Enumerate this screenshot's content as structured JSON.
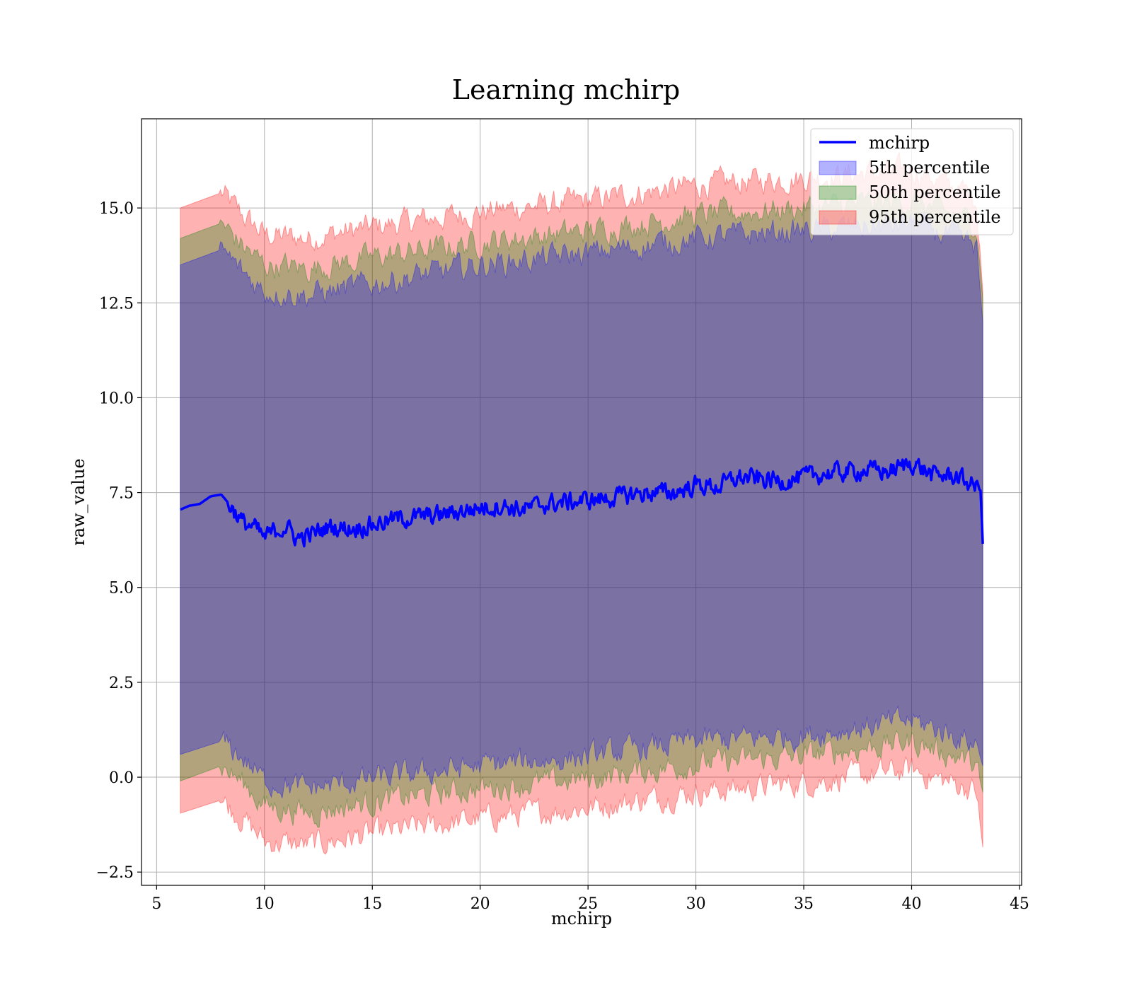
{
  "chart_data": {
    "type": "area",
    "title": "Learning mchirp",
    "xlabel": "mchirp",
    "ylabel": "raw_value",
    "xlim": [
      4.3,
      45.1
    ],
    "ylim": [
      -2.85,
      17.35
    ],
    "x_ticks": [
      5,
      10,
      15,
      20,
      25,
      30,
      35,
      40,
      45
    ],
    "x_tick_labels": [
      "5",
      "10",
      "15",
      "20",
      "25",
      "30",
      "35",
      "40",
      "45"
    ],
    "y_ticks": [
      -2.5,
      0.0,
      2.5,
      5.0,
      7.5,
      10.0,
      12.5,
      15.0
    ],
    "y_tick_labels": [
      "−2.5",
      "0.0",
      "2.5",
      "5.0",
      "7.5",
      "10.0",
      "12.5",
      "15.0"
    ],
    "grid": true,
    "legend_position": "top-right",
    "colors": {
      "line": "#0000ff",
      "band_5th": "#0000ff",
      "band_50th": "#008000",
      "band_95th": "#ff0000"
    },
    "series": [
      {
        "name": "mchirp",
        "kind": "line",
        "x": [
          6.1,
          6.5,
          7.0,
          7.5,
          8.0,
          8.5,
          9.0,
          9.5,
          10.0,
          10.5,
          11.0,
          11.5,
          12.0,
          13.0,
          14.0,
          15.0,
          16.0,
          17.0,
          18.0,
          19.0,
          20.0,
          21.0,
          22.0,
          23.0,
          24.0,
          25.0,
          26.0,
          27.0,
          28.0,
          29.0,
          30.0,
          31.0,
          32.0,
          33.0,
          34.0,
          35.0,
          36.0,
          37.0,
          38.0,
          39.0,
          40.0,
          41.0,
          42.0,
          43.0,
          43.2,
          43.3
        ],
        "values": [
          7.05,
          7.15,
          7.2,
          7.4,
          7.45,
          7.1,
          6.7,
          6.6,
          6.3,
          6.5,
          6.6,
          6.3,
          6.35,
          6.6,
          6.55,
          6.65,
          6.8,
          6.85,
          6.9,
          7.0,
          7.1,
          7.15,
          7.05,
          7.2,
          7.25,
          7.3,
          7.35,
          7.45,
          7.5,
          7.5,
          7.7,
          7.65,
          7.9,
          7.85,
          7.8,
          7.9,
          8.0,
          8.05,
          8.1,
          8.05,
          8.3,
          7.95,
          7.95,
          7.65,
          7.55,
          6.15
        ]
      },
      {
        "name": "5th percentile",
        "kind": "band",
        "x": [
          6.1,
          8.0,
          9.0,
          10.0,
          12.0,
          15.0,
          20.0,
          25.0,
          30.0,
          35.0,
          40.0,
          41.0,
          43.0,
          43.3
        ],
        "lower": [
          0.6,
          0.95,
          0.5,
          -0.1,
          -0.3,
          -0.05,
          0.3,
          0.55,
          0.95,
          1.1,
          1.5,
          1.3,
          0.9,
          0.3
        ],
        "upper": [
          13.5,
          13.9,
          13.3,
          12.8,
          12.7,
          13.0,
          13.5,
          13.8,
          14.2,
          14.4,
          14.6,
          14.4,
          14.0,
          12.0
        ]
      },
      {
        "name": "50th percentile",
        "kind": "band",
        "x": [
          6.1,
          8.0,
          9.0,
          10.0,
          12.0,
          15.0,
          20.0,
          25.0,
          30.0,
          35.0,
          40.0,
          41.0,
          43.0,
          43.3
        ],
        "lower": [
          -0.1,
          0.3,
          -0.15,
          -0.75,
          -0.95,
          -0.65,
          -0.3,
          -0.05,
          0.35,
          0.55,
          0.95,
          0.75,
          0.35,
          -0.4
        ],
        "upper": [
          14.2,
          14.6,
          14.0,
          13.5,
          13.4,
          13.7,
          14.1,
          14.4,
          14.8,
          15.0,
          15.2,
          15.0,
          14.6,
          12.6
        ]
      },
      {
        "name": "95th percentile",
        "kind": "band",
        "x": [
          6.1,
          8.0,
          9.0,
          10.0,
          12.0,
          15.0,
          20.0,
          25.0,
          30.0,
          35.0,
          40.0,
          41.0,
          43.0,
          43.3
        ],
        "lower": [
          -0.95,
          -0.6,
          -1.1,
          -1.7,
          -1.8,
          -1.5,
          -1.1,
          -0.8,
          -0.4,
          -0.15,
          0.2,
          0.0,
          -0.35,
          -1.85
        ],
        "upper": [
          15.0,
          15.4,
          14.8,
          14.3,
          14.2,
          14.5,
          14.9,
          15.2,
          15.6,
          15.8,
          16.0,
          15.8,
          15.3,
          12.8
        ]
      }
    ]
  }
}
